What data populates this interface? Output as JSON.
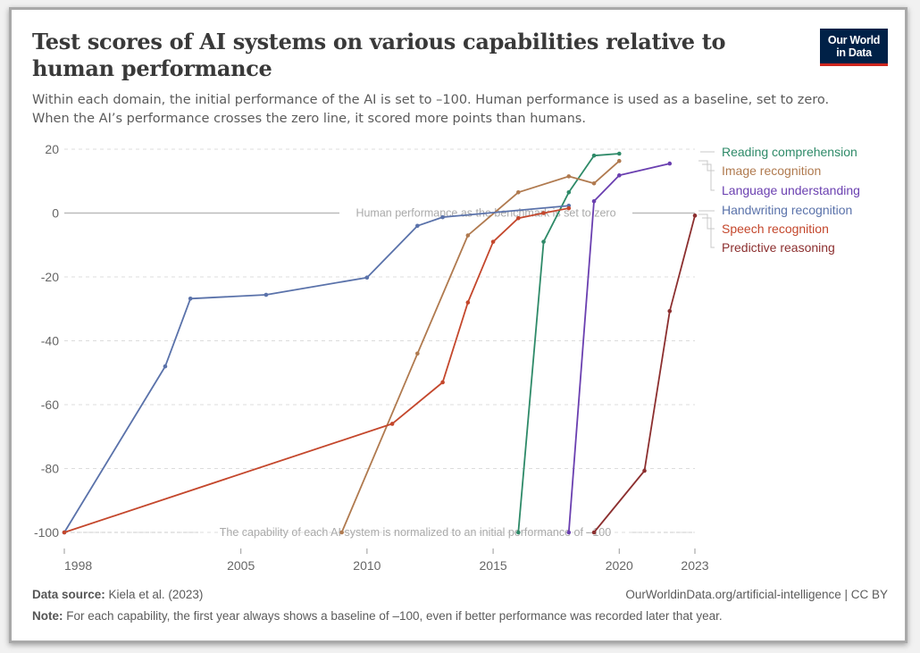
{
  "header": {
    "title": "Test scores of AI systems on various capabilities relative to human performance",
    "subtitle_line1": "Within each domain, the initial performance of the AI is set to –100. Human performance is used as a baseline, set to zero.",
    "subtitle_line2": "When the AI’s performance crosses the zero line, it scored more points than humans.",
    "logo_line1": "Our World",
    "logo_line2": "in Data"
  },
  "footer": {
    "source_label": "Data source:",
    "source_value": "Kiela et al. (2023)",
    "url": "OurWorldinData.org/artificial-intelligence | CC BY",
    "note_label": "Note:",
    "note_value": "For each capability, the first year always shows a baseline of –100, even if better performance was recorded later that year."
  },
  "chart_data": {
    "type": "line",
    "title": "Test scores of AI systems on various capabilities relative to human performance",
    "xlabel": "",
    "ylabel": "",
    "xlim": [
      1998,
      2023
    ],
    "ylim": [
      -100,
      20
    ],
    "x_ticks": [
      1998,
      2005,
      2010,
      2015,
      2020,
      2023
    ],
    "y_ticks": [
      20,
      0,
      -20,
      -40,
      -60,
      -80,
      -100
    ],
    "y_tick_labels": [
      "20",
      "0",
      "-20",
      "-40",
      "-60",
      "-80",
      "-100"
    ],
    "grid": true,
    "legend_placement": "right",
    "annotations": [
      {
        "text": "Human performance as the benchmark is set to zero",
        "y": 0
      },
      {
        "text": "The capability of each AI system is normalized to an initial performance of –100",
        "y": -100
      }
    ],
    "series": [
      {
        "name": "Reading comprehension",
        "color": "#2e8a68",
        "x": [
          2016,
          2017,
          2018,
          2019,
          2020
        ],
        "y": [
          -100,
          -9,
          6.5,
          18,
          18.6
        ]
      },
      {
        "name": "Image recognition",
        "color": "#b07a4f",
        "x": [
          2009,
          2012,
          2014,
          2016,
          2018,
          2019,
          2020
        ],
        "y": [
          -100,
          -44,
          -7,
          6.5,
          11.5,
          9.3,
          16.3
        ]
      },
      {
        "name": "Language understanding",
        "color": "#6a3fb0",
        "x": [
          2018,
          2019,
          2020,
          2022
        ],
        "y": [
          -100,
          3.7,
          11.8,
          15.5
        ]
      },
      {
        "name": "Handwriting recognition",
        "color": "#5a72aa",
        "x": [
          1998,
          2002,
          2003,
          2006,
          2010,
          2012,
          2013,
          2018
        ],
        "y": [
          -100,
          -48,
          -26.8,
          -25.6,
          -20.2,
          -4,
          -1.3,
          2.3
        ]
      },
      {
        "name": "Speech recognition",
        "color": "#c4472c",
        "x": [
          1998,
          2011,
          2013,
          2014,
          2015,
          2016,
          2017,
          2018
        ],
        "y": [
          -100,
          -66,
          -53,
          -28,
          -9,
          -1.6,
          0,
          1.5
        ]
      },
      {
        "name": "Predictive reasoning",
        "color": "#8c2f2f",
        "x": [
          2019,
          2021,
          2022,
          2023
        ],
        "y": [
          -100,
          -80.7,
          -30.7,
          -0.8
        ]
      }
    ]
  }
}
